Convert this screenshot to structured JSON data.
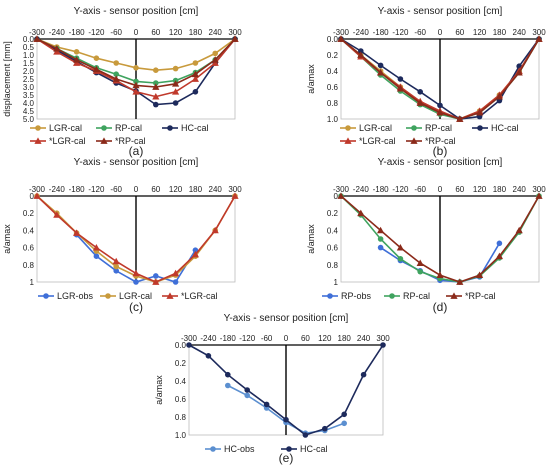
{
  "colors": {
    "LGR": "#C89A3C",
    "RP": "#3FA35F",
    "HC": "#1D2A5C",
    "starLGR": "#C0392B",
    "starRP": "#8B2A1A",
    "LGRobs": "#3F6FD8",
    "RPobs": "#3F6FD8",
    "HCobs": "#5B8FD0"
  },
  "chart_data": [
    {
      "id": "a",
      "label": "(a)",
      "type": "line",
      "title": "Y-axis - sensor position [cm]",
      "ylabel": "displacement [mm]",
      "xlim": [
        -300,
        300
      ],
      "ylim": [
        0,
        5
      ],
      "yreverse": true,
      "xticks": [
        "-300",
        "-240",
        "-180",
        "-120",
        "-60",
        "0",
        "60",
        "120",
        "180",
        "240",
        "300"
      ],
      "yticks": [
        "0.0",
        "0.5",
        "1.0",
        "1.5",
        "2.0",
        "2.5",
        "3.0",
        "3.5",
        "4.0",
        "4.5",
        "5.0"
      ],
      "x": [
        -300,
        -240,
        -180,
        -120,
        -60,
        0,
        60,
        120,
        180,
        240,
        300
      ],
      "series": [
        {
          "name": "LGR-cal",
          "colorKey": "LGR",
          "marker": "circle",
          "values": [
            0,
            0.5,
            0.8,
            1.2,
            1.5,
            1.8,
            1.95,
            1.85,
            1.5,
            0.9,
            0
          ]
        },
        {
          "name": "RP-cal",
          "colorKey": "RP",
          "marker": "circle",
          "values": [
            0,
            0.6,
            1.2,
            1.8,
            2.2,
            2.65,
            2.75,
            2.6,
            2.1,
            1.3,
            0
          ]
        },
        {
          "name": "HC-cal",
          "colorKey": "HC",
          "marker": "circle",
          "values": [
            0,
            0.7,
            1.4,
            2.1,
            2.75,
            3.25,
            4.1,
            4.0,
            3.3,
            1.5,
            0
          ]
        },
        {
          "name": "*LGR-cal",
          "colorKey": "starLGR",
          "marker": "triangle",
          "values": [
            0,
            0.8,
            1.5,
            2.0,
            2.6,
            3.3,
            3.6,
            3.3,
            2.5,
            1.5,
            0
          ]
        },
        {
          "name": "*RP-cal",
          "colorKey": "starRP",
          "marker": "triangle",
          "values": [
            0,
            0.6,
            1.3,
            1.9,
            2.5,
            2.9,
            3.0,
            2.8,
            2.2,
            1.3,
            0
          ]
        }
      ]
    },
    {
      "id": "b",
      "label": "(b)",
      "type": "line",
      "title": "Y-axis - sensor position [cm]",
      "ylabel": "a/amax",
      "xlim": [
        -300,
        300
      ],
      "ylim": [
        0,
        1
      ],
      "yreverse": true,
      "xticks": [
        "-300",
        "-240",
        "-180",
        "-120",
        "-60",
        "0",
        "60",
        "120",
        "180",
        "240",
        "300"
      ],
      "yticks": [
        "0.0",
        "0.2",
        "0.4",
        "0.6",
        "0.8",
        "1.0"
      ],
      "x": [
        -300,
        -240,
        -180,
        -120,
        -60,
        0,
        60,
        120,
        180,
        240,
        300
      ],
      "series": [
        {
          "name": "LGR-cal",
          "colorKey": "LGR",
          "marker": "circle",
          "values": [
            0,
            0.2,
            0.4,
            0.6,
            0.8,
            0.93,
            1.0,
            0.9,
            0.7,
            0.4,
            0
          ]
        },
        {
          "name": "RP-cal",
          "colorKey": "RP",
          "marker": "circle",
          "values": [
            0,
            0.22,
            0.45,
            0.65,
            0.82,
            0.94,
            1.0,
            0.92,
            0.72,
            0.42,
            0
          ]
        },
        {
          "name": "HC-cal",
          "colorKey": "HC",
          "marker": "circle",
          "values": [
            0,
            0.15,
            0.33,
            0.5,
            0.66,
            0.83,
            1.0,
            0.97,
            0.77,
            0.34,
            0
          ]
        },
        {
          "name": "*LGR-cal",
          "colorKey": "starLGR",
          "marker": "triangle",
          "values": [
            0,
            0.22,
            0.42,
            0.6,
            0.78,
            0.9,
            1.0,
            0.9,
            0.7,
            0.4,
            0
          ]
        },
        {
          "name": "*RP-cal",
          "colorKey": "starRP",
          "marker": "triangle",
          "values": [
            0,
            0.2,
            0.42,
            0.62,
            0.8,
            0.92,
            1.0,
            0.92,
            0.72,
            0.42,
            0
          ]
        }
      ]
    },
    {
      "id": "c",
      "label": "(c)",
      "type": "line",
      "title": "Y-axis - sensor position [cm]",
      "ylabel": "a/amax",
      "xlim": [
        -300,
        300
      ],
      "ylim": [
        0,
        1
      ],
      "yreverse": true,
      "xticks": [
        "-300",
        "-240",
        "-180",
        "-120",
        "-60",
        "0",
        "60",
        "120",
        "180",
        "240",
        "300"
      ],
      "yticks": [
        "0",
        "0.2",
        "0.4",
        "0.6",
        "0.8",
        "1"
      ],
      "series": [
        {
          "name": "LGR-obs",
          "colorKey": "LGRobs",
          "marker": "circle",
          "x": [
            -180,
            -120,
            -60,
            0,
            60,
            120,
            180
          ],
          "values": [
            0.45,
            0.7,
            0.87,
            1.0,
            0.93,
            1.0,
            0.63
          ]
        },
        {
          "name": "LGR-cal",
          "colorKey": "LGR",
          "marker": "circle",
          "x": [
            -300,
            -240,
            -180,
            -120,
            -60,
            0,
            60,
            120,
            180,
            240,
            300
          ],
          "values": [
            0,
            0.2,
            0.43,
            0.64,
            0.82,
            0.93,
            1.0,
            0.92,
            0.7,
            0.4,
            0
          ]
        },
        {
          "name": "*LGR-cal",
          "colorKey": "starLGR",
          "marker": "triangle",
          "x": [
            -300,
            -240,
            -180,
            -120,
            -60,
            0,
            60,
            120,
            180,
            240,
            300
          ],
          "values": [
            0,
            0.22,
            0.43,
            0.6,
            0.76,
            0.9,
            1.0,
            0.9,
            0.68,
            0.4,
            0
          ]
        }
      ]
    },
    {
      "id": "d",
      "label": "(d)",
      "type": "line",
      "title": "Y-axis - sensor position [cm]",
      "ylabel": "a/amax",
      "xlim": [
        -300,
        300
      ],
      "ylim": [
        0,
        1
      ],
      "yreverse": true,
      "xticks": [
        "-300",
        "-240",
        "-180",
        "-120",
        "-60",
        "0",
        "60",
        "120",
        "180",
        "240",
        "300"
      ],
      "yticks": [
        "0",
        "0.2",
        "0.4",
        "0.6",
        "0.8",
        "1"
      ],
      "series": [
        {
          "name": "RP-obs",
          "colorKey": "RPobs",
          "marker": "circle",
          "x": [
            -180,
            -120,
            -60,
            0,
            60,
            120,
            180
          ],
          "values": [
            0.6,
            0.75,
            0.87,
            0.98,
            1.0,
            0.94,
            0.55
          ]
        },
        {
          "name": "RP-cal",
          "colorKey": "RP",
          "marker": "circle",
          "x": [
            -300,
            -240,
            -180,
            -120,
            -60,
            0,
            60,
            120,
            180,
            240,
            300
          ],
          "values": [
            0,
            0.22,
            0.5,
            0.73,
            0.88,
            0.96,
            1.0,
            0.93,
            0.72,
            0.42,
            0
          ]
        },
        {
          "name": "*RP-cal",
          "colorKey": "starRP",
          "marker": "triangle",
          "x": [
            -300,
            -240,
            -180,
            -120,
            -60,
            0,
            60,
            120,
            180,
            240,
            300
          ],
          "values": [
            0,
            0.2,
            0.4,
            0.6,
            0.78,
            0.92,
            1.0,
            0.92,
            0.7,
            0.4,
            0
          ]
        }
      ]
    },
    {
      "id": "e",
      "label": "(e)",
      "type": "line",
      "title": "Y-axis - sensor position [cm]",
      "ylabel": "a/amax",
      "xlim": [
        -300,
        300
      ],
      "ylim": [
        0,
        1
      ],
      "yreverse": true,
      "xticks": [
        "-300",
        "-240",
        "-180",
        "-120",
        "-60",
        "0",
        "60",
        "120",
        "180",
        "240",
        "300"
      ],
      "yticks": [
        "0.0",
        "0.2",
        "0.4",
        "0.6",
        "0.8",
        "1.0"
      ],
      "series": [
        {
          "name": "HC-obs",
          "colorKey": "HCobs",
          "marker": "circle",
          "x": [
            -180,
            -120,
            -60,
            0,
            60,
            120,
            180
          ],
          "values": [
            0.45,
            0.56,
            0.7,
            0.86,
            0.98,
            0.95,
            0.87
          ]
        },
        {
          "name": "HC-cal",
          "colorKey": "HC",
          "marker": "circle",
          "x": [
            -300,
            -240,
            -180,
            -120,
            -60,
            0,
            60,
            120,
            180,
            240,
            300
          ],
          "values": [
            0,
            0.12,
            0.33,
            0.5,
            0.66,
            0.83,
            1.0,
            0.93,
            0.77,
            0.33,
            0
          ]
        }
      ]
    }
  ]
}
